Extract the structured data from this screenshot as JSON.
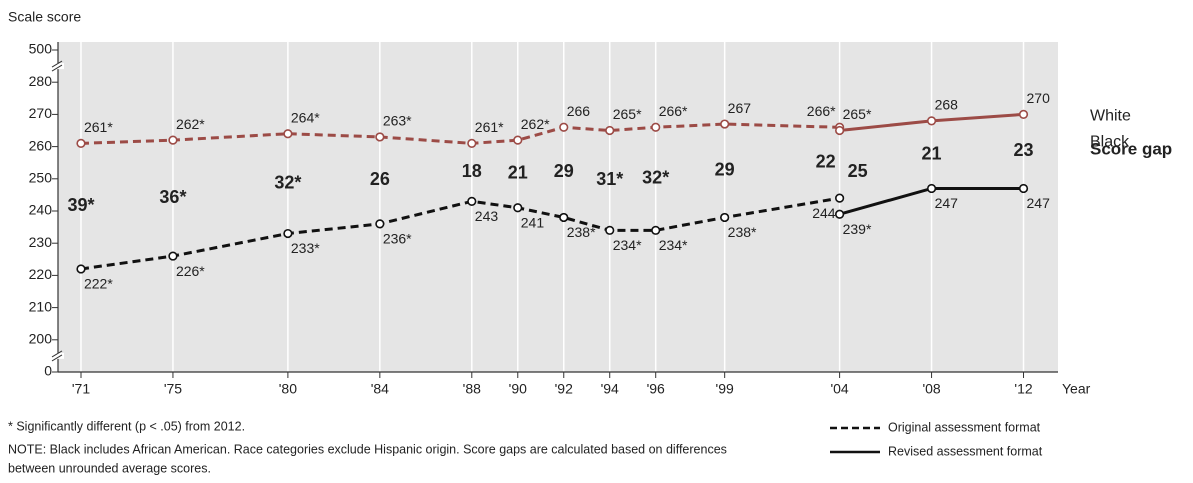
{
  "chart_data": {
    "type": "line",
    "title": "Scale score",
    "x_label": "Year",
    "xlim": [
      1970,
      2013.5
    ],
    "xticks": [
      {
        "value": 1971,
        "label": "'71"
      },
      {
        "value": 1975,
        "label": "'75"
      },
      {
        "value": 1980,
        "label": "'80"
      },
      {
        "value": 1984,
        "label": "'84"
      },
      {
        "value": 1988,
        "label": "'88"
      },
      {
        "value": 1990,
        "label": "'90"
      },
      {
        "value": 1992,
        "label": "'92"
      },
      {
        "value": 1994,
        "label": "'94"
      },
      {
        "value": 1996,
        "label": "'96"
      },
      {
        "value": 1999,
        "label": "'99"
      },
      {
        "value": 2004,
        "label": "'04"
      },
      {
        "value": 2008,
        "label": "'08"
      },
      {
        "value": 2012,
        "label": "'12"
      }
    ],
    "ylim": [
      0,
      500
    ],
    "yticks": [
      0,
      200,
      210,
      220,
      230,
      240,
      250,
      260,
      270,
      280,
      500
    ],
    "broken_axis": true,
    "grid": true,
    "formats": {
      "original": {
        "name": "Original assessment format",
        "line_style": "dashed"
      },
      "revised": {
        "name": "Revised assessment format",
        "line_style": "solid"
      }
    },
    "series": [
      {
        "name": "White",
        "color": "#9c4b46",
        "original": {
          "x": [
            1971,
            1975,
            1980,
            1984,
            1988,
            1990,
            1992,
            1994,
            1996,
            1999,
            2004
          ],
          "values": [
            261,
            262,
            264,
            263,
            261,
            262,
            266,
            265,
            266,
            267,
            266
          ],
          "value_labels": [
            "261*",
            "262*",
            "264*",
            "263*",
            "261*",
            "262*",
            "266",
            "265*",
            "266*",
            "267",
            "266*"
          ]
        },
        "revised": {
          "x": [
            2004,
            2008,
            2012
          ],
          "values": [
            265,
            268,
            270
          ],
          "value_labels": [
            "265*",
            "268",
            "270"
          ]
        }
      },
      {
        "name": "Black",
        "color": "#111111",
        "original": {
          "x": [
            1971,
            1975,
            1980,
            1984,
            1988,
            1990,
            1992,
            1994,
            1996,
            1999,
            2004
          ],
          "values": [
            222,
            226,
            233,
            236,
            243,
            241,
            238,
            234,
            234,
            238,
            244
          ],
          "value_labels": [
            "222*",
            "226*",
            "233*",
            "236*",
            "243",
            "241",
            "238*",
            "234*",
            "234*",
            "238*",
            "244"
          ]
        },
        "revised": {
          "x": [
            2004,
            2008,
            2012
          ],
          "values": [
            239,
            247,
            247
          ],
          "value_labels": [
            "239*",
            "247",
            "247"
          ]
        }
      }
    ],
    "score_gap": {
      "name": "Score gap",
      "original": {
        "values": [
          39,
          36,
          32,
          26,
          18,
          21,
          29,
          31,
          32,
          29,
          22
        ],
        "value_labels": [
          "39*",
          "36*",
          "32*",
          "26",
          "18",
          "21",
          "29",
          "31*",
          "32*",
          "29",
          "22"
        ]
      },
      "revised": {
        "values": [
          25,
          21,
          23
        ],
        "value_labels": [
          "25",
          "21",
          "23"
        ]
      }
    }
  },
  "notes": {
    "significance": "* Significantly different (p < .05) from 2012.",
    "note": [
      "NOTE: Black includes African American. Race categories exclude Hispanic origin. Score gaps are calculated based on differences",
      "between unrounded average scores."
    ]
  }
}
